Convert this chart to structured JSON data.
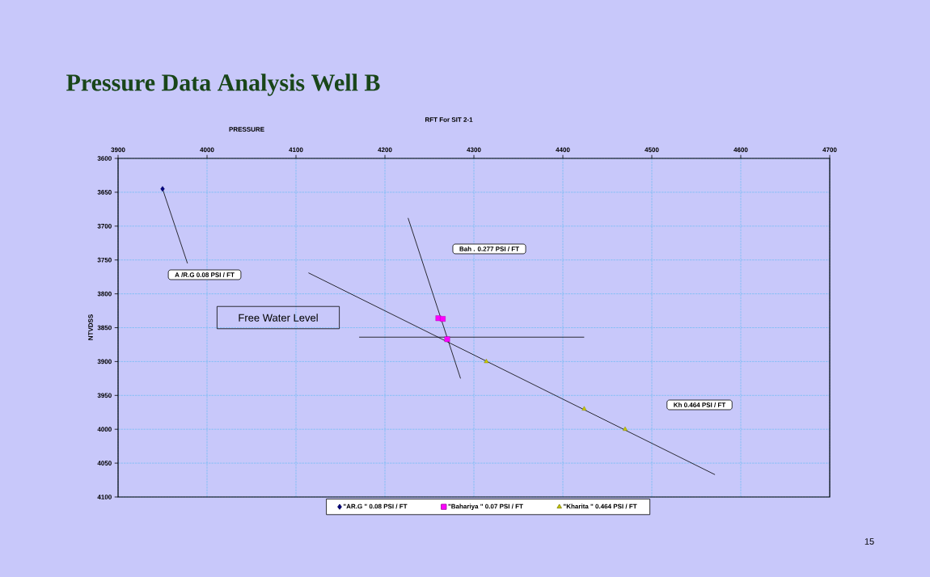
{
  "chart_data": {
    "type": "scatter",
    "title": "Pressure Data Analysis Well B",
    "subtitle": "RFT For SIT 2-1",
    "xlabel": "PRESSURE",
    "ylabel": "NTVDSS",
    "xlim": [
      3900,
      4700
    ],
    "xticks": [
      3900,
      4000,
      4100,
      4200,
      4300,
      4400,
      4500,
      4600,
      4700
    ],
    "ylim": [
      4100,
      3600
    ],
    "yticks": [
      3600,
      3650,
      3700,
      3750,
      3800,
      3850,
      3900,
      3950,
      4000,
      4050,
      4100
    ],
    "grid": true,
    "legend": "bottom",
    "series": [
      {
        "name": "\"AR.G \" 0.08 PSI / FT",
        "marker": "diamond",
        "color": "#000080",
        "x": [
          3950
        ],
        "values": [
          3645
        ]
      },
      {
        "name": "\"Bahariya \" 0.07 PSI / FT",
        "marker": "square",
        "color": "#ff00ff",
        "x": [
          4260,
          4265,
          4270
        ],
        "values": [
          3836,
          3837,
          3867
        ]
      },
      {
        "name": "\"Kharita \" 0.464 PSI / FT",
        "marker": "triangle",
        "color": "#c8c800",
        "x": [
          4314,
          4424,
          4470
        ],
        "values": [
          3900,
          3970,
          4000
        ]
      },
      {
        "type": "line",
        "color": "#000000",
        "line_style": "solid",
        "x": [
          3950,
          3978
        ],
        "values": [
          3645,
          3755
        ]
      },
      {
        "type": "line",
        "color": "#000000",
        "line_style": "solid",
        "x": [
          4226,
          4285
        ],
        "values": [
          3688,
          3925
        ]
      },
      {
        "type": "line",
        "color": "#000000",
        "line_style": "solid",
        "x": [
          4114,
          4571
        ],
        "values": [
          3769,
          4067
        ]
      },
      {
        "type": "line",
        "color": "#000000",
        "line_style": "solid",
        "x": [
          4171,
          4424
        ],
        "values": [
          3864,
          3864
        ]
      }
    ],
    "annotations": [
      "A /R.G 0.08 PSI / FT",
      "Bah . 0.277 PSI / FT",
      "Kh 0.464 PSI / FT",
      "Free Water Level",
      "15"
    ]
  }
}
